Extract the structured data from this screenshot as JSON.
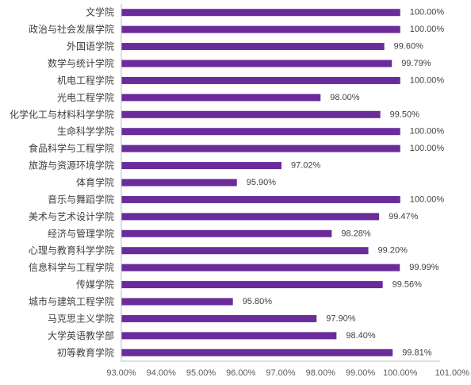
{
  "chart_data": {
    "type": "bar",
    "orientation": "horizontal",
    "categories": [
      "文学院",
      "政治与社会发展学院",
      "外国语学院",
      "数学与统计学院",
      "机电工程学院",
      "光电工程学院",
      "化学化工与材料科学学院",
      "生命科学学院",
      "食品科学与工程学院",
      "旅游与资源环境学院",
      "体育学院",
      "音乐与舞蹈学院",
      "美术与艺术设计学院",
      "经济与管理学院",
      "心理与教育科学学院",
      "信息科学与工程学院",
      "传媒学院",
      "城市与建筑工程学院",
      "马克思主义学院",
      "大学英语教学部",
      "初等教育学院"
    ],
    "values": [
      100.0,
      100.0,
      99.6,
      99.79,
      100.0,
      98.0,
      99.5,
      100.0,
      100.0,
      97.02,
      95.9,
      100.0,
      99.47,
      98.28,
      99.2,
      99.99,
      99.56,
      95.8,
      97.9,
      98.4,
      99.81
    ],
    "value_labels": [
      "100.00%",
      "100.00%",
      "99.60%",
      "99.79%",
      "100.00%",
      "98.00%",
      "99.50%",
      "100.00%",
      "100.00%",
      "97.02%",
      "95.90%",
      "100.00%",
      "99.47%",
      "98.28%",
      "99.20%",
      "99.99%",
      "99.56%",
      "95.80%",
      "97.90%",
      "98.40%",
      "99.81%"
    ],
    "xlim": [
      93,
      101
    ],
    "xticks": [
      93,
      94,
      95,
      96,
      97,
      98,
      99,
      100,
      101
    ],
    "xtick_labels": [
      "93.00%",
      "94.00%",
      "95.00%",
      "96.00%",
      "97.00%",
      "98.00%",
      "99.00%",
      "100.00%",
      "101.00%"
    ],
    "grid": false,
    "legend": "none",
    "bar_color": "#6a2c9a"
  }
}
